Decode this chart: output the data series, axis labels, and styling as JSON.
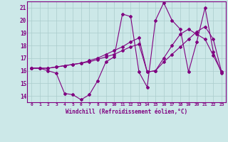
{
  "xlabel": "Windchill (Refroidissement éolien,°C)",
  "x_values": [
    0,
    1,
    2,
    3,
    4,
    5,
    6,
    7,
    8,
    9,
    10,
    11,
    12,
    13,
    14,
    15,
    16,
    17,
    18,
    19,
    20,
    21,
    22,
    23
  ],
  "line1": [
    16.2,
    16.2,
    16.0,
    15.8,
    14.2,
    14.1,
    13.7,
    14.1,
    15.2,
    16.7,
    17.1,
    20.5,
    20.3,
    15.9,
    14.7,
    20.0,
    21.4,
    20.0,
    19.3,
    15.9,
    18.3,
    21.0,
    17.5,
    15.8
  ],
  "line2": [
    16.2,
    16.2,
    16.2,
    16.3,
    16.4,
    16.5,
    16.6,
    16.8,
    17.0,
    17.3,
    17.6,
    17.9,
    18.3,
    18.6,
    15.9,
    16.0,
    17.0,
    18.0,
    18.9,
    19.3,
    18.9,
    18.5,
    17.2,
    15.9
  ],
  "line3": [
    16.2,
    16.2,
    16.2,
    16.3,
    16.4,
    16.5,
    16.6,
    16.7,
    16.9,
    17.1,
    17.3,
    17.6,
    17.9,
    18.1,
    15.9,
    16.0,
    16.7,
    17.3,
    17.9,
    18.5,
    19.1,
    19.5,
    18.5,
    15.9
  ],
  "ylim": [
    13.5,
    21.5
  ],
  "xlim": [
    -0.5,
    23.5
  ],
  "yticks": [
    14,
    15,
    16,
    17,
    18,
    19,
    20,
    21
  ],
  "xticks": [
    0,
    1,
    2,
    3,
    4,
    5,
    6,
    7,
    8,
    9,
    10,
    11,
    12,
    13,
    14,
    15,
    16,
    17,
    18,
    19,
    20,
    21,
    22,
    23
  ],
  "line_color": "#800080",
  "bg_color": "#cce8e8",
  "grid_color": "#aacccc",
  "axis_color": "#800080",
  "text_color": "#800080"
}
